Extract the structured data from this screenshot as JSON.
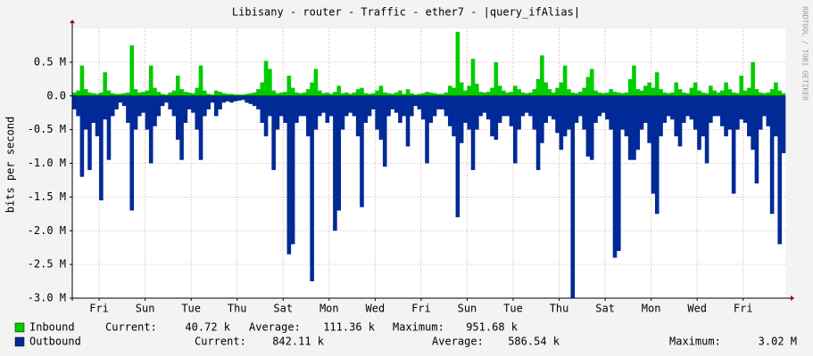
{
  "chart_data": {
    "type": "bar",
    "title": "Libisany - router - Traffic - ether7 - |query_ifAlias|",
    "y_label": "bits per second",
    "side_text": "RRDTOOL / TOBI OETIKER",
    "xlim": [
      0,
      186
    ],
    "xticks": [
      {
        "value": 7,
        "label": "Fri"
      },
      {
        "value": 19,
        "label": "Sun"
      },
      {
        "value": 31,
        "label": "Tue"
      },
      {
        "value": 43,
        "label": "Thu"
      },
      {
        "value": 55,
        "label": "Sat"
      },
      {
        "value": 67,
        "label": "Mon"
      },
      {
        "value": 79,
        "label": "Wed"
      },
      {
        "value": 91,
        "label": "Fri"
      },
      {
        "value": 103,
        "label": "Sun"
      },
      {
        "value": 115,
        "label": "Tue"
      },
      {
        "value": 127,
        "label": "Thu"
      },
      {
        "value": 139,
        "label": "Sat"
      },
      {
        "value": 151,
        "label": "Mon"
      },
      {
        "value": 163,
        "label": "Wed"
      },
      {
        "value": 175,
        "label": "Fri"
      }
    ],
    "ylim": [
      -3.0,
      1.0
    ],
    "yticks": [
      {
        "value": 0.5,
        "label": "0.5 M"
      },
      {
        "value": 0,
        "label": "0.0"
      },
      {
        "value": -0.5,
        "label": "-0.5 M"
      },
      {
        "value": -1.0,
        "label": "-1.0 M"
      },
      {
        "value": -1.5,
        "label": "-1.5 M"
      },
      {
        "value": -2.0,
        "label": "-2.0 M"
      },
      {
        "value": -2.5,
        "label": "-2.5 M"
      },
      {
        "value": -3.0,
        "label": "-3.0 M"
      }
    ],
    "grid": true,
    "series": [
      {
        "name": "Inbound",
        "color": "#00cc00",
        "stats": [
          {
            "label": "Current:",
            "value": "40.72 k"
          },
          {
            "label": "Average:",
            "value": "111.36 k"
          },
          {
            "label": "Maximum:",
            "value": "951.68 k"
          }
        ],
        "values": [
          0.05,
          0.08,
          0.45,
          0.1,
          0.05,
          0.04,
          0.03,
          0.05,
          0.35,
          0.08,
          0.04,
          0.03,
          0.03,
          0.04,
          0.05,
          0.75,
          0.1,
          0.05,
          0.06,
          0.08,
          0.45,
          0.12,
          0.06,
          0.03,
          0.02,
          0.05,
          0.08,
          0.3,
          0.1,
          0.06,
          0.05,
          0.04,
          0.12,
          0.45,
          0.08,
          0.03,
          0.02,
          0.08,
          0.06,
          0.04,
          0.03,
          0.03,
          0.02,
          0.02,
          0.02,
          0.03,
          0.04,
          0.05,
          0.1,
          0.2,
          0.52,
          0.4,
          0.08,
          0.04,
          0.05,
          0.06,
          0.3,
          0.12,
          0.05,
          0.04,
          0.05,
          0.1,
          0.2,
          0.4,
          0.08,
          0.04,
          0.05,
          0.03,
          0.06,
          0.15,
          0.04,
          0.05,
          0.03,
          0.05,
          0.1,
          0.12,
          0.04,
          0.03,
          0.04,
          0.08,
          0.15,
          0.05,
          0.04,
          0.03,
          0.05,
          0.08,
          0.03,
          0.1,
          0.04,
          0.02,
          0.03,
          0.04,
          0.06,
          0.05,
          0.04,
          0.03,
          0.03,
          0.05,
          0.15,
          0.12,
          0.95,
          0.2,
          0.08,
          0.15,
          0.55,
          0.18,
          0.06,
          0.05,
          0.06,
          0.12,
          0.5,
          0.15,
          0.08,
          0.05,
          0.06,
          0.15,
          0.1,
          0.05,
          0.04,
          0.05,
          0.1,
          0.25,
          0.6,
          0.2,
          0.1,
          0.05,
          0.12,
          0.2,
          0.45,
          0.1,
          0.05,
          0.04,
          0.06,
          0.12,
          0.28,
          0.4,
          0.08,
          0.05,
          0.04,
          0.05,
          0.1,
          0.06,
          0.05,
          0.04,
          0.05,
          0.25,
          0.45,
          0.1,
          0.08,
          0.15,
          0.2,
          0.12,
          0.35,
          0.1,
          0.05,
          0.04,
          0.05,
          0.2,
          0.1,
          0.05,
          0.04,
          0.12,
          0.2,
          0.08,
          0.05,
          0.04,
          0.15,
          0.08,
          0.05,
          0.08,
          0.2,
          0.1,
          0.05,
          0.04,
          0.3,
          0.08,
          0.12,
          0.5,
          0.1,
          0.05,
          0.04,
          0.05,
          0.1,
          0.2,
          0.08,
          0.04
        ]
      },
      {
        "name": "Outbound",
        "color": "#002a97",
        "stats": [
          {
            "label": "Current:",
            "value": "842.11 k"
          },
          {
            "label": "Average:",
            "value": "586.54 k"
          },
          {
            "label": "Maximum:",
            "value": "3.02 M"
          }
        ],
        "values": [
          -0.2,
          -0.3,
          -1.2,
          -0.5,
          -1.1,
          -0.4,
          -0.6,
          -1.55,
          -0.35,
          -0.95,
          -0.3,
          -0.2,
          -0.1,
          -0.15,
          -0.4,
          -1.7,
          -0.5,
          -0.3,
          -0.25,
          -0.5,
          -1.0,
          -0.45,
          -0.3,
          -0.15,
          -0.1,
          -0.2,
          -0.3,
          -0.65,
          -0.95,
          -0.4,
          -0.2,
          -0.25,
          -0.5,
          -0.95,
          -0.3,
          -0.2,
          -0.1,
          -0.3,
          -0.2,
          -0.1,
          -0.08,
          -0.1,
          -0.08,
          -0.07,
          -0.06,
          -0.1,
          -0.12,
          -0.15,
          -0.2,
          -0.4,
          -0.6,
          -0.3,
          -1.1,
          -0.5,
          -0.3,
          -0.4,
          -2.35,
          -2.2,
          -0.4,
          -0.3,
          -0.3,
          -0.6,
          -2.75,
          -0.5,
          -0.3,
          -0.25,
          -0.4,
          -0.3,
          -2.0,
          -1.7,
          -0.5,
          -0.3,
          -0.25,
          -0.3,
          -0.6,
          -1.65,
          -0.4,
          -0.3,
          -0.2,
          -0.5,
          -0.65,
          -1.05,
          -0.3,
          -0.2,
          -0.25,
          -0.4,
          -0.3,
          -0.75,
          -0.3,
          -0.15,
          -0.2,
          -0.35,
          -1.0,
          -0.4,
          -0.3,
          -0.2,
          -0.2,
          -0.3,
          -0.45,
          -0.6,
          -1.8,
          -0.7,
          -0.4,
          -0.5,
          -1.1,
          -0.5,
          -0.3,
          -0.25,
          -0.35,
          -0.6,
          -0.65,
          -0.4,
          -0.3,
          -0.3,
          -0.45,
          -1.0,
          -0.5,
          -0.3,
          -0.25,
          -0.3,
          -0.5,
          -1.1,
          -0.7,
          -0.4,
          -0.3,
          -0.35,
          -0.55,
          -0.8,
          -0.6,
          -0.5,
          -3.0,
          -0.4,
          -0.3,
          -0.5,
          -0.9,
          -0.95,
          -0.4,
          -0.3,
          -0.25,
          -0.35,
          -0.5,
          -2.4,
          -2.3,
          -0.5,
          -0.6,
          -0.95,
          -0.95,
          -0.8,
          -0.5,
          -0.4,
          -0.7,
          -1.45,
          -1.75,
          -0.6,
          -0.4,
          -0.3,
          -0.35,
          -0.6,
          -0.75,
          -0.4,
          -0.3,
          -0.35,
          -0.5,
          -0.8,
          -0.6,
          -1.0,
          -0.4,
          -0.3,
          -0.3,
          -0.45,
          -0.6,
          -0.5,
          -1.45,
          -0.5,
          -0.35,
          -0.4,
          -0.6,
          -0.8,
          -1.3,
          -0.5,
          -0.3,
          -0.45,
          -1.75,
          -0.6,
          -2.2,
          -0.85
        ]
      }
    ]
  }
}
